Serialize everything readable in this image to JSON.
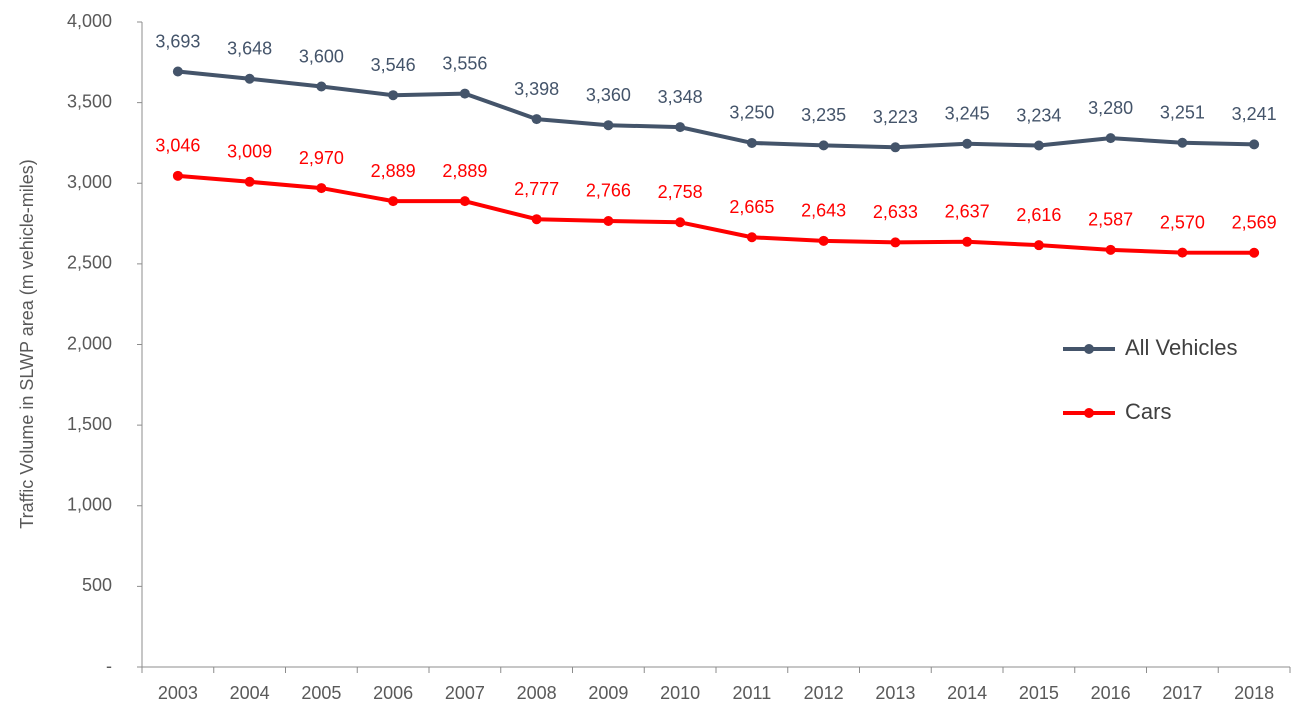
{
  "chart_data": {
    "type": "line",
    "y_axis_label": "Traffic Volume in SLWP area  (m vehicle-miles)",
    "categories": [
      "2003",
      "2004",
      "2005",
      "2006",
      "2007",
      "2008",
      "2009",
      "2010",
      "2011",
      "2012",
      "2013",
      "2014",
      "2015",
      "2016",
      "2017",
      "2018"
    ],
    "series": [
      {
        "name": "All Vehicles",
        "color": "#44546a",
        "values": [
          3693,
          3648,
          3600,
          3546,
          3556,
          3398,
          3360,
          3348,
          3250,
          3235,
          3223,
          3245,
          3234,
          3280,
          3251,
          3241
        ],
        "value_labels": [
          "3,693",
          "3,648",
          "3,600",
          "3,546",
          "3,556",
          "3,398",
          "3,360",
          "3,348",
          "3,250",
          "3,235",
          "3,223",
          "3,245",
          "3,234",
          "3,280",
          "3,251",
          "3,241"
        ]
      },
      {
        "name": "Cars",
        "color": "#ff0000",
        "values": [
          3046,
          3009,
          2970,
          2889,
          2889,
          2777,
          2766,
          2758,
          2665,
          2643,
          2633,
          2637,
          2616,
          2587,
          2570,
          2569
        ],
        "value_labels": [
          "3,046",
          "3,009",
          "2,970",
          "2,889",
          "2,889",
          "2,777",
          "2,766",
          "2,758",
          "2,665",
          "2,643",
          "2,633",
          "2,637",
          "2,616",
          "2,587",
          "2,570",
          "2,569"
        ]
      }
    ],
    "ylim": [
      0,
      4000
    ],
    "yticks": [
      {
        "value": 0,
        "label": "-"
      },
      500,
      {
        "value": 1000,
        "label": "1,000"
      },
      {
        "value": 1500,
        "label": "1,500"
      },
      {
        "value": 2000,
        "label": "2,000"
      },
      {
        "value": 2500,
        "label": "2,500"
      },
      {
        "value": 3000,
        "label": "3,000"
      },
      {
        "value": 3500,
        "label": "3,500"
      },
      {
        "value": 4000,
        "label": "4,000"
      }
    ],
    "grid": false,
    "legend": "right"
  }
}
